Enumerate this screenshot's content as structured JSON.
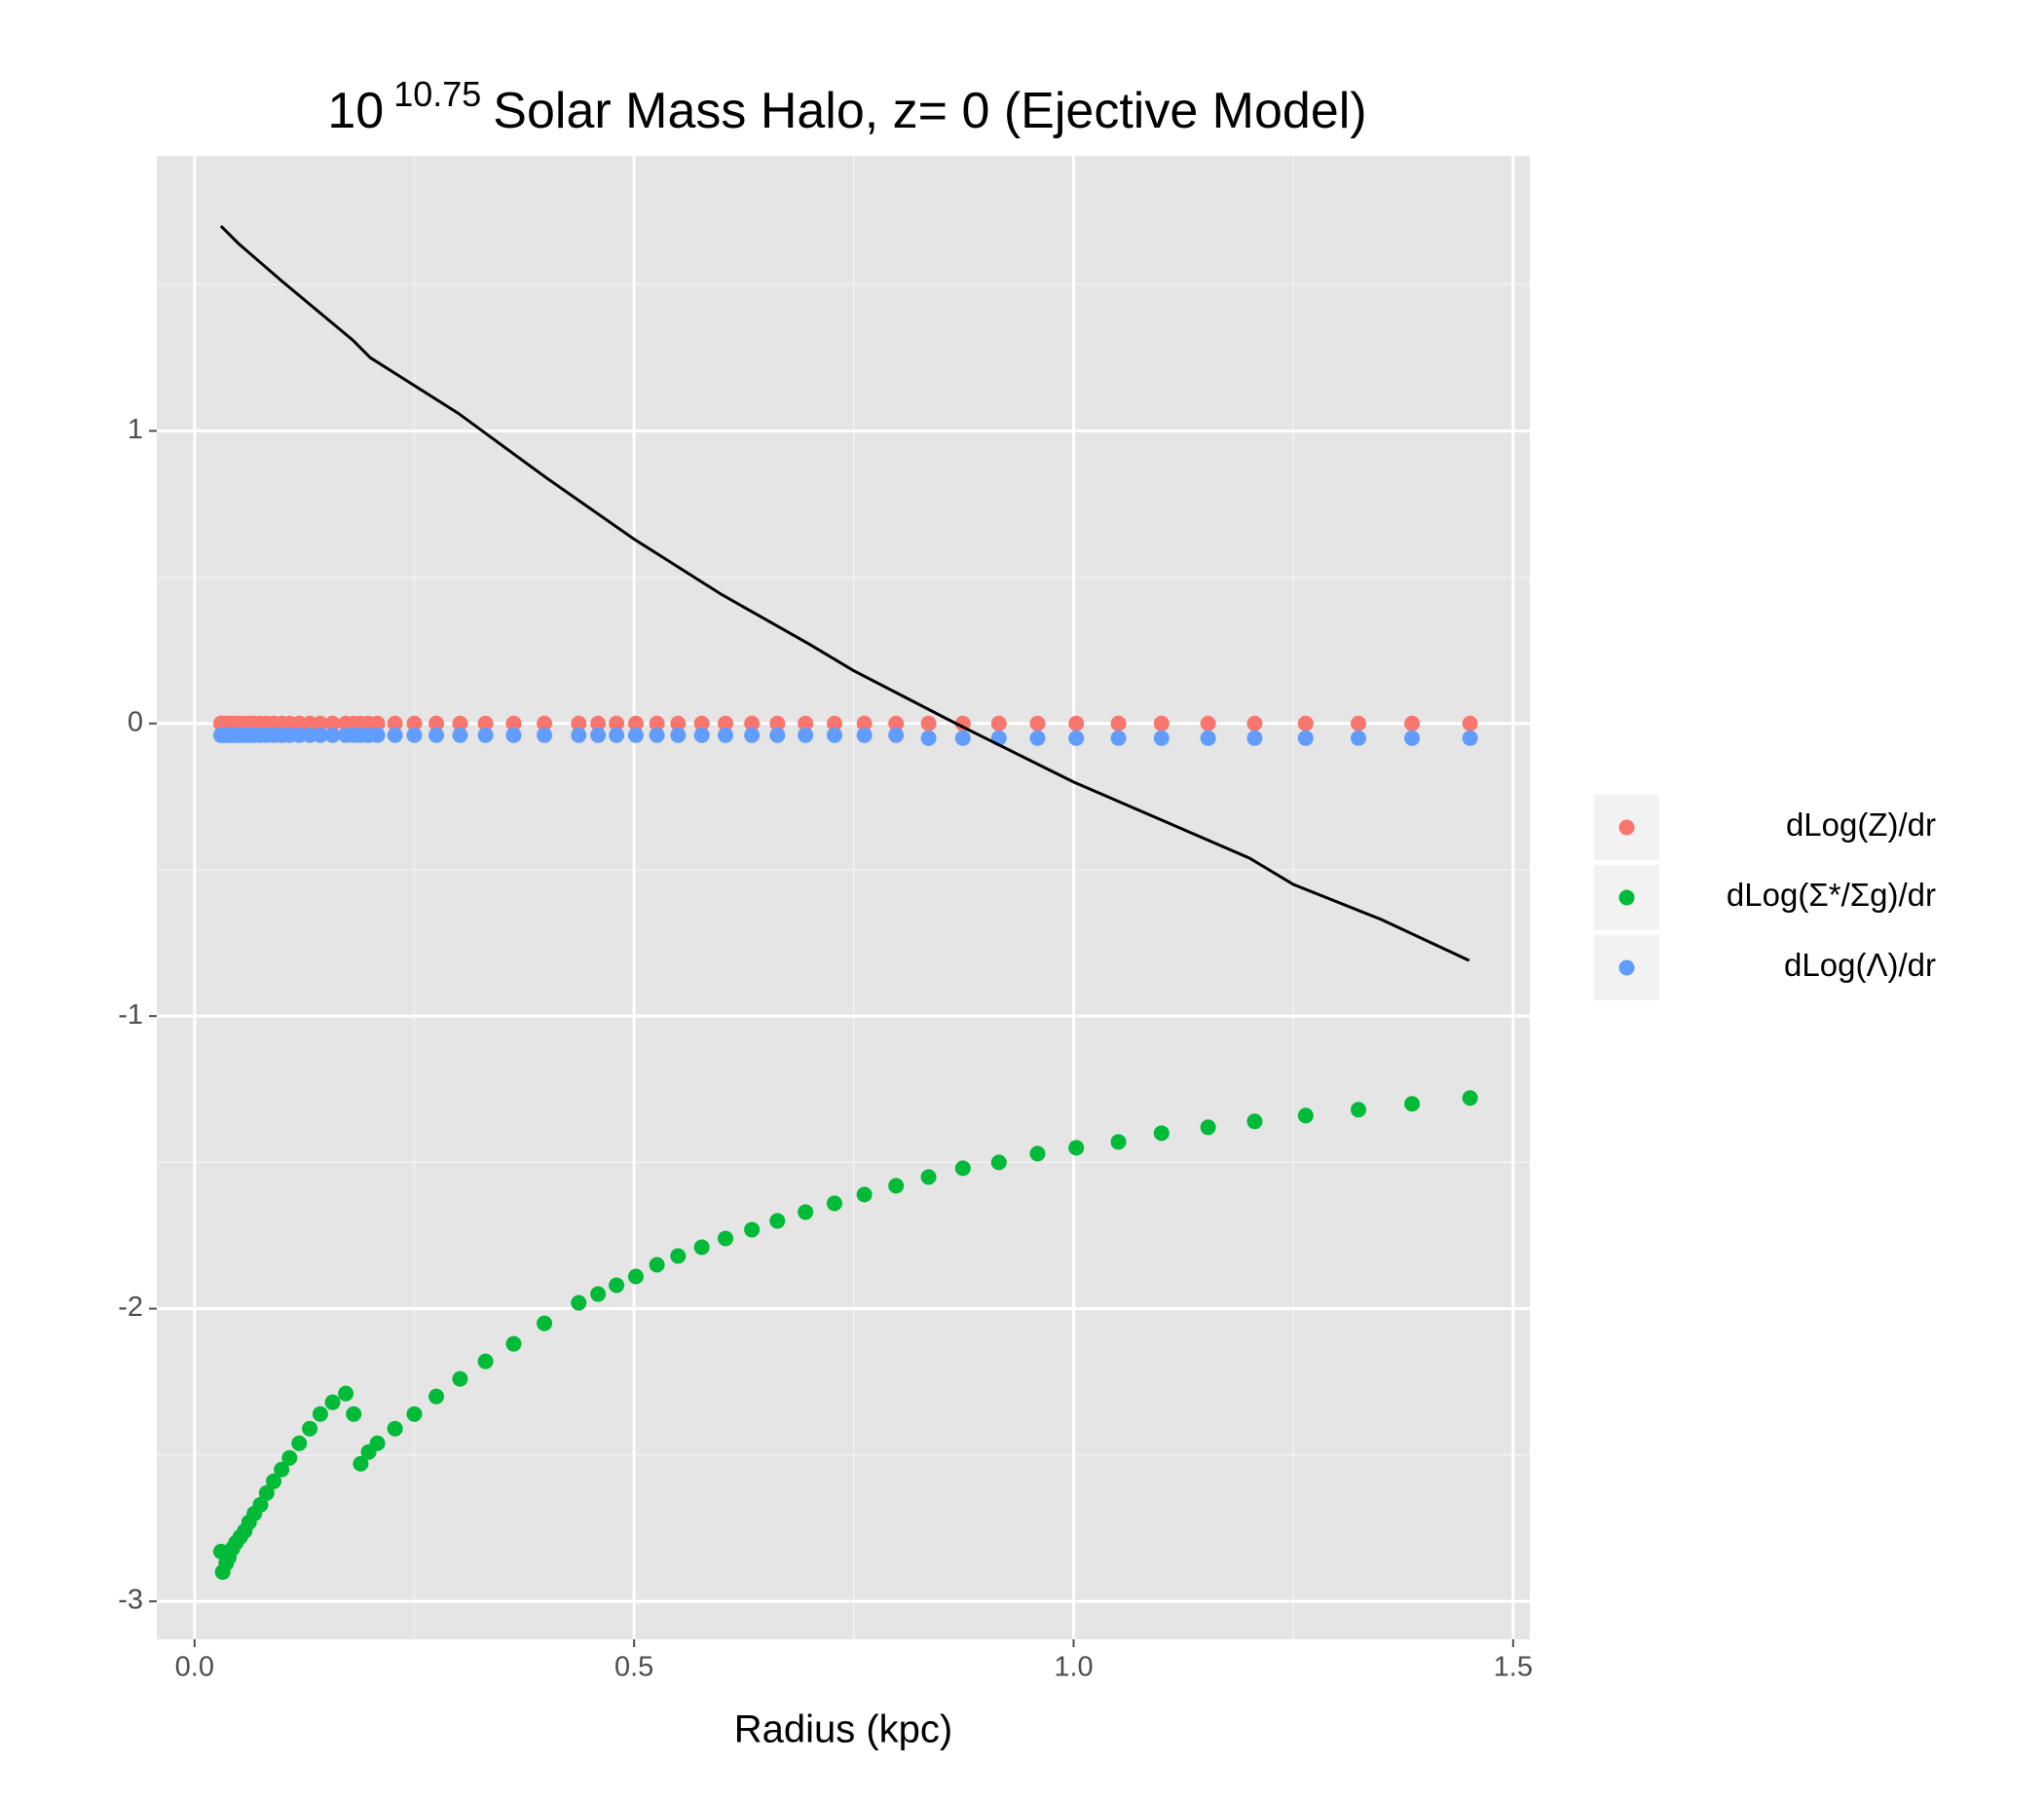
{
  "chart_data": {
    "type": "scatter",
    "title_parts": [
      "10",
      "10.75",
      "Solar Mass Halo, z= 0 (Ejective Model)"
    ],
    "x_label": "Radius (kpc)",
    "x": [
      0.03,
      0.032,
      0.036,
      0.039,
      0.043,
      0.047,
      0.052,
      0.057,
      0.062,
      0.068,
      0.075,
      0.082,
      0.09,
      0.099,
      0.108,
      0.119,
      0.131,
      0.143,
      0.157,
      0.172,
      0.181,
      0.189,
      0.198,
      0.208,
      0.228,
      0.25,
      0.275,
      0.302,
      0.331,
      0.363,
      0.398,
      0.437,
      0.459,
      0.48,
      0.502,
      0.526,
      0.55,
      0.577,
      0.604,
      0.634,
      0.663,
      0.695,
      0.728,
      0.762,
      0.798,
      0.835,
      0.874,
      0.915,
      0.959,
      1.003,
      1.051,
      1.1,
      1.153,
      1.206,
      1.264,
      1.324,
      1.385,
      1.451
    ],
    "series": [
      {
        "name": "dLog(Z)/dr",
        "color": "#F8766D",
        "values": [
          0,
          0,
          0,
          0,
          0,
          0,
          0,
          0,
          0,
          0,
          0,
          0,
          0,
          0,
          0,
          0,
          0,
          0,
          0,
          0,
          0,
          0,
          0,
          0,
          0,
          0,
          0,
          0,
          0,
          0,
          0,
          0,
          0,
          0,
          0,
          0,
          0,
          0,
          0,
          0,
          0,
          0,
          0,
          0,
          0,
          0,
          0,
          0,
          0,
          0,
          0,
          0,
          0,
          0,
          0,
          0,
          0,
          0
        ]
      },
      {
        "name": "dLog(Σ*/Σg)/dr",
        "color": "#00BA38",
        "values": [
          -2.83,
          -2.9,
          -2.87,
          -2.85,
          -2.82,
          -2.8,
          -2.78,
          -2.76,
          -2.73,
          -2.7,
          -2.67,
          -2.63,
          -2.59,
          -2.55,
          -2.51,
          -2.46,
          -2.41,
          -2.36,
          -2.32,
          -2.29,
          -2.36,
          -2.53,
          -2.49,
          -2.46,
          -2.41,
          -2.36,
          -2.3,
          -2.24,
          -2.18,
          -2.12,
          -2.05,
          -1.98,
          -1.95,
          -1.92,
          -1.89,
          -1.85,
          -1.82,
          -1.79,
          -1.76,
          -1.73,
          -1.7,
          -1.67,
          -1.64,
          -1.61,
          -1.58,
          -1.55,
          -1.52,
          -1.5,
          -1.47,
          -1.45,
          -1.43,
          -1.4,
          -1.38,
          -1.36,
          -1.34,
          -1.32,
          -1.3,
          -1.28
        ]
      },
      {
        "name": "dLog(Λ)/dr",
        "color": "#619CFF",
        "values": [
          -0.04,
          -0.04,
          -0.04,
          -0.04,
          -0.04,
          -0.04,
          -0.04,
          -0.04,
          -0.04,
          -0.04,
          -0.04,
          -0.04,
          -0.04,
          -0.04,
          -0.04,
          -0.04,
          -0.04,
          -0.04,
          -0.04,
          -0.04,
          -0.04,
          -0.04,
          -0.04,
          -0.04,
          -0.04,
          -0.04,
          -0.04,
          -0.04,
          -0.04,
          -0.04,
          -0.04,
          -0.04,
          -0.04,
          -0.04,
          -0.04,
          -0.04,
          -0.04,
          -0.04,
          -0.04,
          -0.04,
          -0.04,
          -0.04,
          -0.04,
          -0.04,
          -0.04,
          -0.05,
          -0.05,
          -0.05,
          -0.05,
          -0.05,
          -0.05,
          -0.05,
          -0.05,
          -0.05,
          -0.05,
          -0.05,
          -0.05,
          -0.05
        ]
      }
    ],
    "lines": [
      {
        "color": "#000000",
        "x": [
          0.03,
          0.05,
          0.1,
          0.18,
          0.2,
          0.3,
          0.4,
          0.5,
          0.6,
          0.7,
          0.75,
          0.866,
          1.0,
          1.1,
          1.2,
          1.25,
          1.35,
          1.45
        ],
        "values": [
          1.7,
          1.64,
          1.51,
          1.31,
          1.25,
          1.06,
          0.84,
          0.63,
          0.44,
          0.27,
          0.18,
          0,
          -0.2,
          -0.33,
          -0.46,
          -0.55,
          -0.67,
          -0.81
        ]
      }
    ],
    "xlim": [
      -0.043,
      1.519
    ],
    "ylim": [
      -3.13,
      1.94
    ],
    "xticks": [
      {
        "value": 0,
        "label": "0.0"
      },
      0.5,
      {
        "value": 1,
        "label": "1.0"
      },
      1.5
    ],
    "yticks": [
      -3,
      -2,
      -1,
      0,
      1
    ],
    "x_minor_ticks": [
      0.25,
      0.75,
      1.25
    ],
    "y_minor_ticks": [
      -2.5,
      -1.5,
      -0.5,
      0.5,
      1.5
    ],
    "grid": true,
    "legend": "right"
  }
}
